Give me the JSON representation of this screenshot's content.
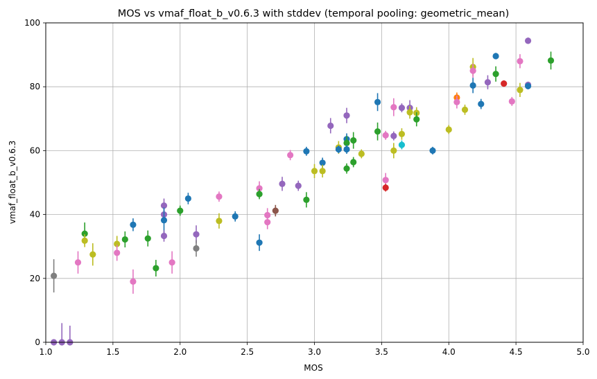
{
  "chart_data": {
    "type": "scatter",
    "title": "MOS vs vmaf_float_b_v0.6.3 with stddev (temporal pooling: geometric_mean)",
    "xlabel": "MOS",
    "ylabel": "vmaf_float_b_v0.6.3",
    "xlim": [
      1.0,
      5.0
    ],
    "ylim": [
      0,
      100
    ],
    "xticks": [
      "1.0",
      "1.5",
      "2.0",
      "2.5",
      "3.0",
      "3.5",
      "4.0",
      "4.5",
      "5.0"
    ],
    "yticks": [
      "0",
      "20",
      "40",
      "60",
      "80",
      "100"
    ],
    "grid": true,
    "error_bars": "stddev",
    "colors": {
      "blue": "#1f77b4",
      "orange": "#ff7f0e",
      "green": "#2ca02c",
      "red": "#d62728",
      "purple": "#9467bd",
      "brown": "#8c564b",
      "pink": "#e377c2",
      "gray": "#7f7f7f",
      "olive": "#bcbd22",
      "cyan": "#17becf"
    },
    "points": [
      {
        "x": 1.06,
        "y": 20.8,
        "err": 5.2,
        "c": "gray"
      },
      {
        "x": 1.06,
        "y": 0.0,
        "err": 0.4,
        "c": "purple"
      },
      {
        "x": 1.12,
        "y": 0.0,
        "err": 6.0,
        "c": "purple"
      },
      {
        "x": 1.18,
        "y": 0.0,
        "err": 5.2,
        "c": "purple"
      },
      {
        "x": 1.24,
        "y": 25.0,
        "err": 3.5,
        "c": "pink"
      },
      {
        "x": 1.29,
        "y": 34.0,
        "err": 3.5,
        "c": "green"
      },
      {
        "x": 1.29,
        "y": 31.8,
        "err": 2.0,
        "c": "olive"
      },
      {
        "x": 1.35,
        "y": 27.5,
        "err": 3.5,
        "c": "olive"
      },
      {
        "x": 1.53,
        "y": 30.8,
        "err": 2.5,
        "c": "olive"
      },
      {
        "x": 1.53,
        "y": 28.0,
        "err": 2.5,
        "c": "pink"
      },
      {
        "x": 1.59,
        "y": 32.2,
        "err": 2.5,
        "c": "green"
      },
      {
        "x": 1.65,
        "y": 36.8,
        "err": 2.0,
        "c": "blue"
      },
      {
        "x": 1.65,
        "y": 19.0,
        "err": 3.8,
        "c": "pink"
      },
      {
        "x": 1.76,
        "y": 32.5,
        "err": 2.5,
        "c": "green"
      },
      {
        "x": 1.82,
        "y": 23.2,
        "err": 2.6,
        "c": "green"
      },
      {
        "x": 1.88,
        "y": 42.8,
        "err": 2.2,
        "c": "purple"
      },
      {
        "x": 1.88,
        "y": 40.0,
        "err": 1.5,
        "c": "purple"
      },
      {
        "x": 1.88,
        "y": 38.2,
        "err": 4.0,
        "c": "blue"
      },
      {
        "x": 1.88,
        "y": 33.3,
        "err": 1.8,
        "c": "purple"
      },
      {
        "x": 1.94,
        "y": 25.0,
        "err": 3.5,
        "c": "pink"
      },
      {
        "x": 2.0,
        "y": 41.2,
        "err": 1.6,
        "c": "green"
      },
      {
        "x": 2.06,
        "y": 45.0,
        "err": 1.8,
        "c": "blue"
      },
      {
        "x": 2.12,
        "y": 33.8,
        "err": 2.8,
        "c": "purple"
      },
      {
        "x": 2.12,
        "y": 29.4,
        "err": 2.6,
        "c": "gray"
      },
      {
        "x": 2.29,
        "y": 45.6,
        "err": 1.6,
        "c": "pink"
      },
      {
        "x": 2.29,
        "y": 38.0,
        "err": 2.4,
        "c": "olive"
      },
      {
        "x": 2.41,
        "y": 39.4,
        "err": 1.6,
        "c": "blue"
      },
      {
        "x": 2.59,
        "y": 48.2,
        "err": 2.2,
        "c": "pink"
      },
      {
        "x": 2.59,
        "y": 46.4,
        "err": 1.6,
        "c": "green"
      },
      {
        "x": 2.59,
        "y": 31.2,
        "err": 2.6,
        "c": "blue"
      },
      {
        "x": 2.65,
        "y": 39.8,
        "err": 2.2,
        "c": "pink"
      },
      {
        "x": 2.65,
        "y": 37.6,
        "err": 2.2,
        "c": "pink"
      },
      {
        "x": 2.71,
        "y": 41.2,
        "err": 1.8,
        "c": "brown"
      },
      {
        "x": 2.76,
        "y": 49.6,
        "err": 2.2,
        "c": "purple"
      },
      {
        "x": 2.82,
        "y": 58.6,
        "err": 1.6,
        "c": "pink"
      },
      {
        "x": 2.88,
        "y": 49.0,
        "err": 1.6,
        "c": "purple"
      },
      {
        "x": 2.94,
        "y": 59.8,
        "err": 1.4,
        "c": "blue"
      },
      {
        "x": 2.94,
        "y": 44.6,
        "err": 2.4,
        "c": "green"
      },
      {
        "x": 3.0,
        "y": 53.6,
        "err": 2.2,
        "c": "olive"
      },
      {
        "x": 3.06,
        "y": 56.2,
        "err": 1.6,
        "c": "blue"
      },
      {
        "x": 3.06,
        "y": 53.6,
        "err": 2.0,
        "c": "olive"
      },
      {
        "x": 3.12,
        "y": 67.8,
        "err": 2.4,
        "c": "purple"
      },
      {
        "x": 3.18,
        "y": 61.0,
        "err": 2.0,
        "c": "olive"
      },
      {
        "x": 3.18,
        "y": 60.4,
        "err": 1.2,
        "c": "blue"
      },
      {
        "x": 3.24,
        "y": 71.0,
        "err": 2.4,
        "c": "purple"
      },
      {
        "x": 3.24,
        "y": 63.6,
        "err": 1.8,
        "c": "blue"
      },
      {
        "x": 3.24,
        "y": 62.4,
        "err": 2.2,
        "c": "green"
      },
      {
        "x": 3.24,
        "y": 60.4,
        "err": 1.4,
        "c": "blue"
      },
      {
        "x": 3.24,
        "y": 54.4,
        "err": 1.6,
        "c": "green"
      },
      {
        "x": 3.29,
        "y": 63.2,
        "err": 2.6,
        "c": "green"
      },
      {
        "x": 3.29,
        "y": 56.4,
        "err": 1.6,
        "c": "green"
      },
      {
        "x": 3.35,
        "y": 59.0,
        "err": 1.4,
        "c": "olive"
      },
      {
        "x": 3.47,
        "y": 75.2,
        "err": 2.8,
        "c": "blue"
      },
      {
        "x": 3.47,
        "y": 66.0,
        "err": 2.8,
        "c": "green"
      },
      {
        "x": 3.53,
        "y": 64.8,
        "err": 1.4,
        "c": "pink"
      },
      {
        "x": 3.53,
        "y": 50.8,
        "err": 2.2,
        "c": "pink"
      },
      {
        "x": 3.53,
        "y": 48.4,
        "err": 1.2,
        "c": "red"
      },
      {
        "x": 3.59,
        "y": 73.6,
        "err": 2.8,
        "c": "pink"
      },
      {
        "x": 3.59,
        "y": 64.6,
        "err": 1.4,
        "c": "purple"
      },
      {
        "x": 3.59,
        "y": 60.0,
        "err": 2.4,
        "c": "olive"
      },
      {
        "x": 3.65,
        "y": 73.4,
        "err": 1.4,
        "c": "purple"
      },
      {
        "x": 3.65,
        "y": 65.2,
        "err": 1.8,
        "c": "olive"
      },
      {
        "x": 3.65,
        "y": 61.8,
        "err": 1.4,
        "c": "cyan"
      },
      {
        "x": 3.71,
        "y": 73.4,
        "err": 2.4,
        "c": "purple"
      },
      {
        "x": 3.71,
        "y": 72.0,
        "err": 2.0,
        "c": "olive"
      },
      {
        "x": 3.76,
        "y": 71.8,
        "err": 1.8,
        "c": "olive"
      },
      {
        "x": 3.76,
        "y": 69.8,
        "err": 2.2,
        "c": "green"
      },
      {
        "x": 3.88,
        "y": 60.0,
        "err": 1.2,
        "c": "blue"
      },
      {
        "x": 4.0,
        "y": 66.6,
        "err": 1.4,
        "c": "olive"
      },
      {
        "x": 4.06,
        "y": 76.6,
        "err": 1.6,
        "c": "orange"
      },
      {
        "x": 4.06,
        "y": 75.2,
        "err": 2.0,
        "c": "pink"
      },
      {
        "x": 4.12,
        "y": 72.8,
        "err": 1.6,
        "c": "olive"
      },
      {
        "x": 4.18,
        "y": 86.2,
        "err": 2.8,
        "c": "olive"
      },
      {
        "x": 4.18,
        "y": 85.0,
        "err": 2.2,
        "c": "pink"
      },
      {
        "x": 4.18,
        "y": 80.4,
        "err": 2.4,
        "c": "blue"
      },
      {
        "x": 4.24,
        "y": 74.6,
        "err": 1.6,
        "c": "blue"
      },
      {
        "x": 4.29,
        "y": 81.4,
        "err": 2.2,
        "c": "purple"
      },
      {
        "x": 4.35,
        "y": 89.6,
        "err": 1.0,
        "c": "blue"
      },
      {
        "x": 4.35,
        "y": 84.0,
        "err": 2.4,
        "c": "green"
      },
      {
        "x": 4.41,
        "y": 81.0,
        "err": 1.0,
        "c": "red"
      },
      {
        "x": 4.47,
        "y": 75.4,
        "err": 1.4,
        "c": "pink"
      },
      {
        "x": 4.53,
        "y": 88.0,
        "err": 2.2,
        "c": "pink"
      },
      {
        "x": 4.53,
        "y": 79.0,
        "err": 2.2,
        "c": "olive"
      },
      {
        "x": 4.59,
        "y": 94.4,
        "err": 1.0,
        "c": "purple"
      },
      {
        "x": 4.59,
        "y": 80.6,
        "err": 1.0,
        "c": "purple"
      },
      {
        "x": 4.59,
        "y": 80.2,
        "err": 1.0,
        "c": "blue"
      },
      {
        "x": 4.76,
        "y": 88.2,
        "err": 2.8,
        "c": "green"
      }
    ]
  }
}
